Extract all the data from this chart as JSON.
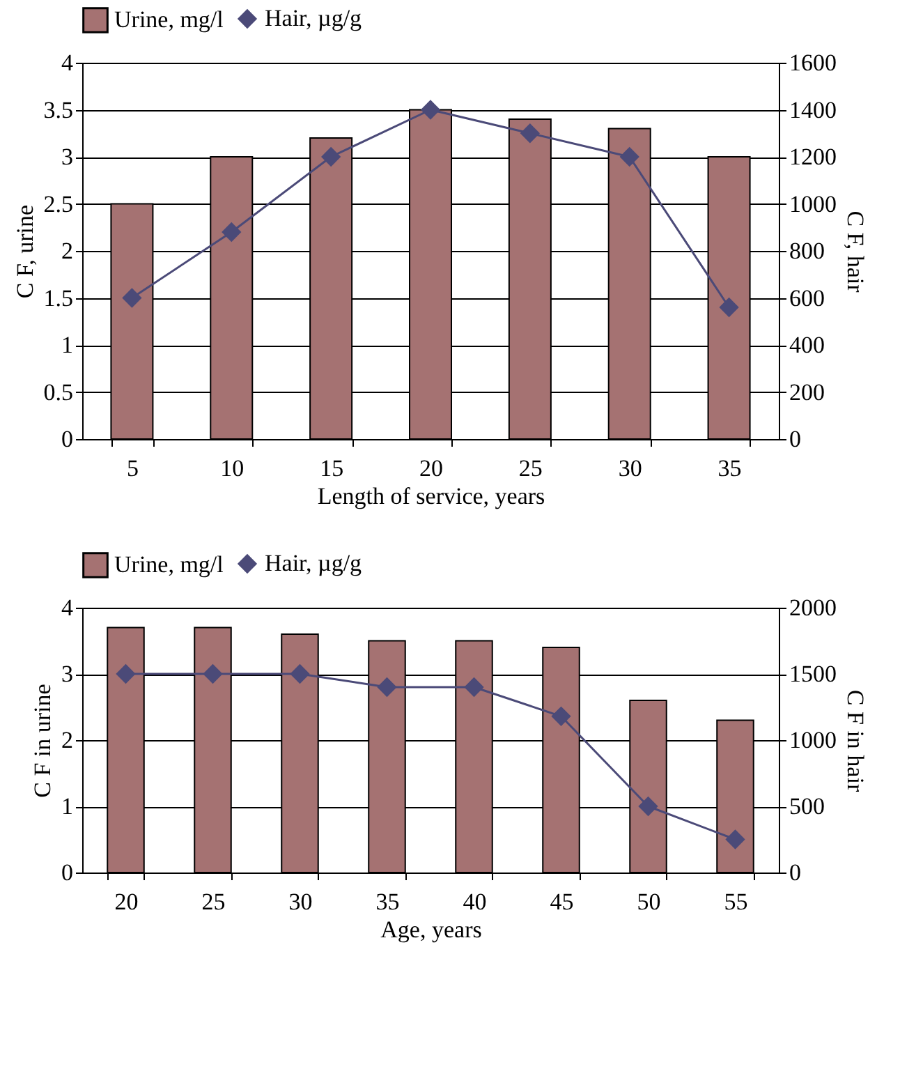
{
  "chart_data": [
    {
      "type": "bar",
      "xlabel": "Length of service, years",
      "ylabel": "C F, urine",
      "y2label": "C F, hair",
      "categories": [
        "5",
        "10",
        "15",
        "20",
        "25",
        "30",
        "35"
      ],
      "series": [
        {
          "name": "Urine, mg/l",
          "color": "#a57272",
          "values": [
            2.5,
            3.0,
            3.2,
            3.5,
            3.4,
            3.3,
            3.0
          ]
        },
        {
          "name": "Hair, µg/g",
          "type": "line",
          "axis": "y2",
          "color": "#4b4a78",
          "marker": "diamond",
          "values": [
            600,
            880,
            1200,
            1400,
            1300,
            1200,
            560
          ]
        }
      ],
      "ylim": [
        0,
        4
      ],
      "yticks": [
        0,
        0.5,
        1,
        1.5,
        2,
        2.5,
        3,
        3.5,
        4
      ],
      "y2lim": [
        0,
        1600
      ],
      "y2ticks": [
        0,
        200,
        400,
        600,
        800,
        1000,
        1200,
        1400,
        1600
      ],
      "grid": "y",
      "legend": "top"
    },
    {
      "type": "bar",
      "xlabel": "Age, years",
      "ylabel": "C F in urine",
      "y2label": "C F in hair",
      "categories": [
        "20",
        "25",
        "30",
        "35",
        "40",
        "45",
        "50",
        "55"
      ],
      "series": [
        {
          "name": "Urine, mg/l",
          "color": "#a57272",
          "values": [
            3.7,
            3.7,
            3.6,
            3.5,
            3.5,
            3.4,
            2.6,
            2.3
          ]
        },
        {
          "name": "Hair, µg/g",
          "type": "line",
          "axis": "y2",
          "color": "#4b4a78",
          "marker": "diamond",
          "values": [
            1500,
            1500,
            1500,
            1400,
            1400,
            1180,
            500,
            250
          ]
        }
      ],
      "ylim": [
        0,
        4
      ],
      "yticks": [
        0,
        1,
        2,
        3,
        4
      ],
      "y2lim": [
        0,
        2000
      ],
      "y2ticks": [
        0,
        500,
        1000,
        1500,
        2000
      ],
      "grid": "y",
      "legend": "top"
    }
  ]
}
